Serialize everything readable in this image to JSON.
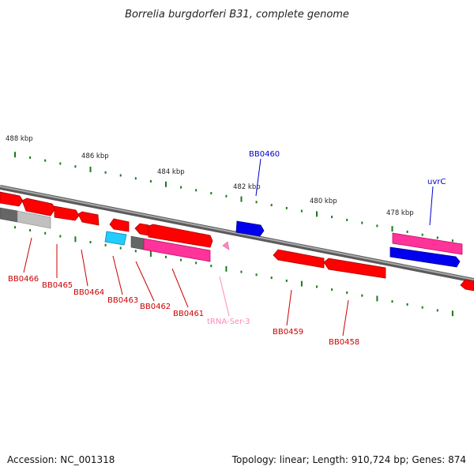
{
  "map": {
    "title": "Borrelia burgdorferi B31, complete genome",
    "footer": {
      "accession": "Accession: NC_001318",
      "summary": "Topology: linear; Length: 910,724 bp; Genes: 874"
    },
    "kbp_labels": [
      "488 kbp",
      "486 kbp",
      "484 kbp",
      "482 kbp",
      "480 kbp",
      "478 kbp"
    ],
    "genes_top": [
      {
        "label": "BB0460",
        "color": "#0000cc"
      },
      {
        "label": "uvrC",
        "color": "#0000cc"
      }
    ],
    "genes_bottom": [
      {
        "label": "BB0466",
        "color": "#cc0000"
      },
      {
        "label": "BB0465",
        "color": "#cc0000"
      },
      {
        "label": "BB0464",
        "color": "#cc0000"
      },
      {
        "label": "BB0463",
        "color": "#cc0000"
      },
      {
        "label": "BB0462",
        "color": "#cc0000"
      },
      {
        "label": "BB0461",
        "color": "#cc0000"
      },
      {
        "label": "tRNA-Ser-3",
        "color": "#ff88bb"
      },
      {
        "label": "BB0459",
        "color": "#cc0000"
      },
      {
        "label": "BB0458",
        "color": "#cc0000"
      }
    ],
    "colors": {
      "backbone": "#808080",
      "tick": "#1a7a1a",
      "gene_red": "#ff0000",
      "gene_pink": "#ff3399",
      "gene_blue": "#0000ee",
      "gene_cyan": "#22ccff",
      "pseudo_gray": "#777777"
    }
  }
}
